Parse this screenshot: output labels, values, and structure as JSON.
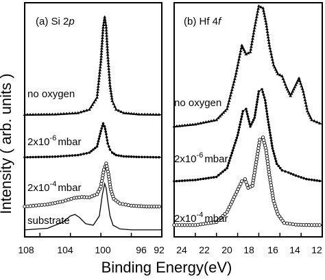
{
  "figure": {
    "ylabel": "Intensity ( arb. units )",
    "xlabel": "Binding Energy(eV)"
  },
  "chart_data": [
    {
      "type": "line",
      "panel": "a",
      "title_prefix": "(a) Si 2",
      "title_italic": "p",
      "xlabel": "Binding Energy(eV)",
      "ylabel": "Intensity ( arb. units )",
      "xlim": [
        110,
        92
      ],
      "x_reversed": true,
      "xticks": [
        108,
        104,
        100,
        96,
        92
      ],
      "grid": false,
      "series": [
        {
          "label_kind": "plain",
          "label_text": "no oxygen",
          "marker": "triangle",
          "x": [
            110,
            106,
            103,
            101.5,
            100.5,
            100,
            99.7,
            99.5,
            99.3,
            99.1,
            98.8,
            98.5,
            98,
            97,
            95,
            92
          ],
          "y": [
            0.05,
            0.06,
            0.1,
            0.2,
            0.55,
            1.6,
            2.6,
            2.9,
            2.6,
            1.8,
            0.9,
            0.45,
            0.2,
            0.1,
            0.06,
            0.05
          ]
        },
        {
          "label_kind": "pressure",
          "label_prefix": "2x10",
          "label_exp": "-6",
          "label_unit": "mbar",
          "marker": "dot",
          "x": [
            110,
            106,
            103,
            101.5,
            100.5,
            100,
            99.7,
            99.5,
            99.3,
            99.1,
            98.8,
            98.5,
            98,
            97,
            95,
            92
          ],
          "y": [
            0.05,
            0.07,
            0.12,
            0.2,
            0.4,
            0.9,
            1.15,
            1.05,
            0.8,
            0.5,
            0.3,
            0.2,
            0.12,
            0.08,
            0.06,
            0.05
          ]
        },
        {
          "label_kind": "pressure",
          "label_prefix": "2x10",
          "label_exp": "-4",
          "label_unit": "mbar",
          "marker": "circle",
          "x": [
            110,
            107,
            105,
            103.5,
            102.5,
            101.5,
            100.5,
            100,
            99.6,
            99.3,
            99,
            98.7,
            98.3,
            97.5,
            96,
            94,
            92
          ],
          "y": [
            0.05,
            0.12,
            0.22,
            0.33,
            0.36,
            0.35,
            0.45,
            0.7,
            1.25,
            1.45,
            1.1,
            0.6,
            0.3,
            0.15,
            0.08,
            0.05,
            0.05
          ]
        },
        {
          "label_kind": "plain",
          "label_text": "substrate",
          "marker": "line",
          "x": [
            110,
            107,
            105,
            104,
            103.4,
            102.8,
            102,
            101,
            100.2,
            99.8,
            99.5,
            99.3,
            99.1,
            98.8,
            98.4,
            97.5,
            96,
            92
          ],
          "y": [
            0.05,
            0.1,
            0.3,
            0.5,
            0.55,
            0.45,
            0.25,
            0.2,
            0.5,
            1.2,
            1.55,
            1.4,
            1.0,
            0.5,
            0.2,
            0.08,
            0.05,
            0.05
          ]
        }
      ]
    },
    {
      "type": "line",
      "panel": "b",
      "title_prefix": "(b) Hf 4",
      "title_italic": "f",
      "xlabel": "Binding Energy(eV)",
      "ylabel": "Intensity ( arb. units )",
      "xlim": [
        26,
        12
      ],
      "x_reversed": true,
      "xticks": [
        24,
        22,
        20,
        18,
        16,
        14,
        12
      ],
      "grid": false,
      "series": [
        {
          "label_kind": "plain",
          "label_text": "no oxygen",
          "marker": "triangle",
          "x": [
            26,
            24,
            22,
            21,
            20.2,
            19.6,
            19.2,
            18.8,
            18.4,
            18,
            17.6,
            17.3,
            17,
            16.6,
            16.2,
            15.8,
            15.4,
            15,
            14.6,
            14.2,
            13.8,
            13.4,
            13,
            12
          ],
          "y": [
            0.05,
            0.1,
            0.2,
            0.45,
            1.2,
            1.9,
            1.7,
            1.75,
            2.3,
            2.8,
            2.75,
            2.4,
            1.9,
            1.45,
            1.25,
            1.2,
            0.95,
            0.75,
            0.95,
            1.15,
            0.85,
            0.4,
            0.2,
            0.1
          ]
        },
        {
          "label_kind": "pressure",
          "label_prefix": "2x10",
          "label_exp": "-6",
          "label_unit": "mbar",
          "marker": "dot",
          "x": [
            26,
            24,
            22,
            21,
            20,
            19.5,
            19.2,
            18.8,
            18.4,
            18,
            17.7,
            17.4,
            17.1,
            16.7,
            16.3,
            15.8,
            15.2,
            14.5,
            13.5,
            12
          ],
          "y": [
            0.05,
            0.08,
            0.15,
            0.35,
            1.1,
            1.65,
            1.7,
            1.3,
            1.5,
            2.1,
            2.15,
            1.9,
            1.4,
            0.8,
            0.45,
            0.3,
            0.25,
            0.18,
            0.1,
            0.05
          ]
        },
        {
          "label_kind": "pressure",
          "label_prefix": "2x10",
          "label_exp": "-4",
          "label_unit": "mbar",
          "marker": "circle",
          "x": [
            26,
            24,
            22,
            21,
            20.2,
            19.6,
            19.3,
            19,
            18.6,
            18.2,
            17.9,
            17.6,
            17.3,
            17,
            16.6,
            16.2,
            15.6,
            14.5,
            13,
            12
          ],
          "y": [
            0.05,
            0.05,
            0.12,
            0.35,
            0.75,
            1.05,
            1.1,
            0.9,
            0.95,
            1.55,
            2.0,
            2.05,
            1.75,
            1.2,
            0.6,
            0.3,
            0.1,
            0.06,
            0.05,
            0.05
          ]
        }
      ]
    }
  ]
}
